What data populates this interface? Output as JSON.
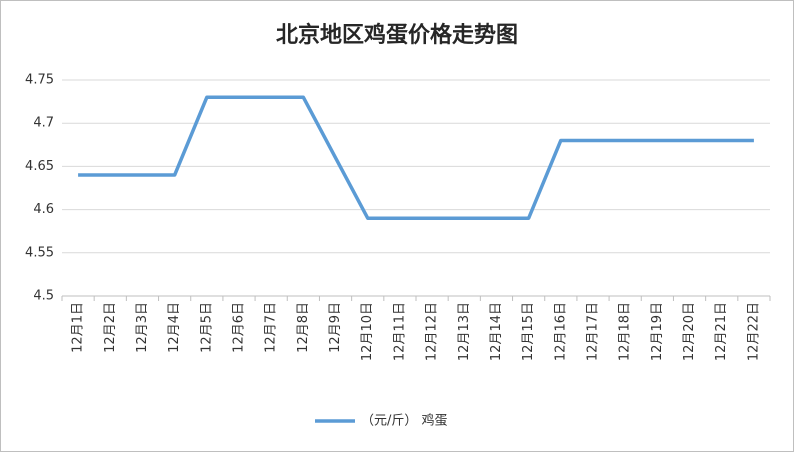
{
  "chart_data": {
    "type": "line",
    "title": "北京地区鸡蛋价格走势图",
    "categories": [
      "12月1日",
      "12月2日",
      "12月3日",
      "12月4日",
      "12月5日",
      "12月6日",
      "12月7日",
      "12月8日",
      "12月9日",
      "12月10日",
      "12月11日",
      "12月12日",
      "12月13日",
      "12月14日",
      "12月15日",
      "12月16日",
      "12月17日",
      "12月18日",
      "12月19日",
      "12月20日",
      "12月21日",
      "12月22日"
    ],
    "series": [
      {
        "name": "（元/斤） 鸡蛋",
        "color": "#5b9bd5",
        "values": [
          4.64,
          4.64,
          4.64,
          4.64,
          4.73,
          4.73,
          4.73,
          4.73,
          4.66,
          4.59,
          4.59,
          4.59,
          4.59,
          4.59,
          4.59,
          4.68,
          4.68,
          4.68,
          4.68,
          4.68,
          4.68,
          4.68
        ]
      }
    ],
    "ylim": [
      4.5,
      4.75
    ],
    "yticks": [
      4.5,
      4.55,
      4.6,
      4.65,
      4.7,
      4.75
    ],
    "grid": true,
    "legend": "bottom"
  }
}
